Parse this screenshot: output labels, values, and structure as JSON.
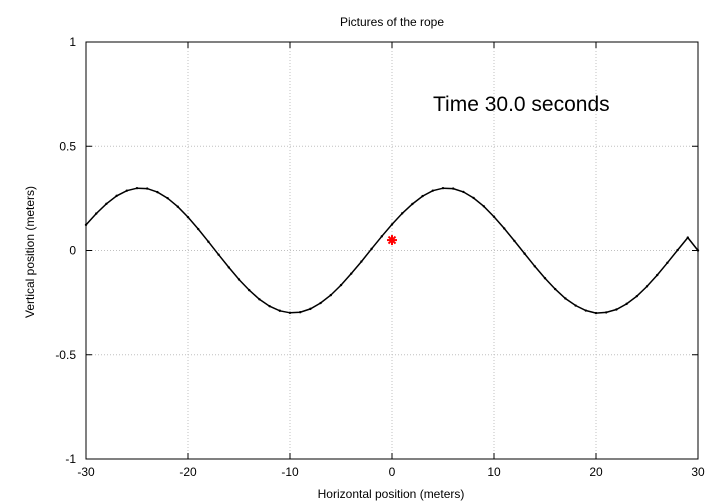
{
  "chart_data": {
    "type": "line",
    "title": "Pictures of the rope",
    "xlabel": "Horizontal position (meters)",
    "ylabel": "Vertical position (meters)",
    "xlim": [
      -30,
      30
    ],
    "ylim": [
      -1,
      1
    ],
    "x_ticks": [
      -30,
      -20,
      -10,
      0,
      10,
      20,
      30
    ],
    "y_ticks": [
      -1,
      -0.5,
      0,
      0.5,
      1
    ],
    "x_tick_labels": [
      "-30",
      "-20",
      "-10",
      "0",
      "10",
      "20",
      "30"
    ],
    "y_tick_labels": [
      "-1",
      "-0.5",
      "0",
      "0.5",
      "1"
    ],
    "grid": true,
    "annotation": "Time 30.0 seconds",
    "series": [
      {
        "color": "#000000",
        "marker": "dot",
        "x": [
          -30,
          -29,
          -28,
          -27,
          -26,
          -25,
          -24,
          -23,
          -22,
          -21,
          -20,
          -19,
          -18,
          -17,
          -16,
          -15,
          -14,
          -13,
          -12,
          -11,
          -10,
          -9,
          -8,
          -7,
          -6,
          -5,
          -4,
          -3,
          -2,
          -1,
          0,
          1,
          2,
          3,
          4,
          5,
          6,
          7,
          8,
          9,
          10,
          11,
          12,
          13,
          14,
          15,
          16,
          17,
          18,
          19,
          20,
          21,
          22,
          23,
          24,
          25,
          26,
          27,
          28,
          29,
          30
        ],
        "y": [
          0.123,
          0.177,
          0.224,
          0.262,
          0.287,
          0.299,
          0.297,
          0.28,
          0.251,
          0.21,
          0.16,
          0.103,
          0.042,
          -0.02,
          -0.081,
          -0.139,
          -0.19,
          -0.234,
          -0.267,
          -0.289,
          -0.299,
          -0.296,
          -0.28,
          -0.252,
          -0.214,
          -0.166,
          -0.111,
          -0.053,
          0.008,
          0.068,
          0.125,
          0.178,
          0.223,
          0.261,
          0.287,
          0.299,
          0.297,
          0.281,
          0.252,
          0.212,
          0.162,
          0.106,
          0.046,
          -0.015,
          -0.076,
          -0.133,
          -0.185,
          -0.23,
          -0.264,
          -0.288,
          -0.3,
          -0.297,
          -0.283,
          -0.256,
          -0.219,
          -0.172,
          -0.118,
          -0.059,
          0.002,
          0.062,
          0.0
        ]
      }
    ],
    "highlight_point": {
      "x": 0,
      "y": 0.05,
      "color": "#ff0000",
      "marker": "asterisk"
    }
  }
}
